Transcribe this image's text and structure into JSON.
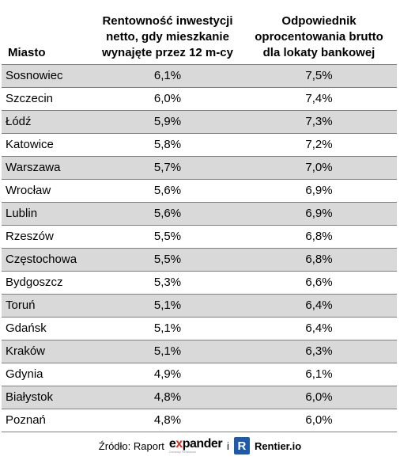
{
  "chart_data": {
    "type": "table",
    "columns": [
      "Miasto",
      "Rentowność inwestycji netto, gdy mieszkanie wynajęte przez 12 m-cy",
      "Odpowiednik oprocentowania brutto dla lokaty bankowej"
    ],
    "header_lines": {
      "city": [
        "Miasto"
      ],
      "return": [
        "Rentowność inwestycji",
        "netto, gdy mieszkanie",
        "wynajęte przez 12 m-cy"
      ],
      "equivalent": [
        "Odpowiednik",
        "oprocentowania brutto",
        "dla lokaty bankowej"
      ]
    },
    "rows": [
      {
        "city": "Sosnowiec",
        "return": "6,1%",
        "equivalent": "7,5%"
      },
      {
        "city": "Szczecin",
        "return": "6,0%",
        "equivalent": "7,4%"
      },
      {
        "city": "Łódź",
        "return": "5,9%",
        "equivalent": "7,3%"
      },
      {
        "city": "Katowice",
        "return": "5,8%",
        "equivalent": "7,2%"
      },
      {
        "city": "Warszawa",
        "return": "5,7%",
        "equivalent": "7,0%"
      },
      {
        "city": "Wrocław",
        "return": "5,6%",
        "equivalent": "6,9%"
      },
      {
        "city": "Lublin",
        "return": "5,6%",
        "equivalent": "6,9%"
      },
      {
        "city": "Rzeszów",
        "return": "5,5%",
        "equivalent": "6,8%"
      },
      {
        "city": "Częstochowa",
        "return": "5,5%",
        "equivalent": "6,8%"
      },
      {
        "city": "Bydgoszcz",
        "return": "5,3%",
        "equivalent": "6,6%"
      },
      {
        "city": "Toruń",
        "return": "5,1%",
        "equivalent": "6,4%"
      },
      {
        "city": "Gdańsk",
        "return": "5,1%",
        "equivalent": "6,4%"
      },
      {
        "city": "Kraków",
        "return": "5,1%",
        "equivalent": "6,3%"
      },
      {
        "city": "Gdynia",
        "return": "4,9%",
        "equivalent": "6,1%"
      },
      {
        "city": "Białystok",
        "return": "4,8%",
        "equivalent": "6,0%"
      },
      {
        "city": "Poznań",
        "return": "4,8%",
        "equivalent": "6,0%"
      }
    ],
    "row_shading": "alternating, odd rows shaded"
  },
  "colors": {
    "row_shade": "#d9d9d9",
    "rule": "#7f7f7f",
    "expander_accent": "#e2261c",
    "rentier_blue": "#1e5aa8"
  },
  "source": {
    "label": "Źródło: Raport",
    "expander_prefix": "e",
    "expander_x": "x",
    "expander_rest": "pander",
    "expander_tagline": "Doradcy Finansowi",
    "conjunction": "i",
    "rentier_mark": "R",
    "rentier_name": "Rentier.io"
  }
}
